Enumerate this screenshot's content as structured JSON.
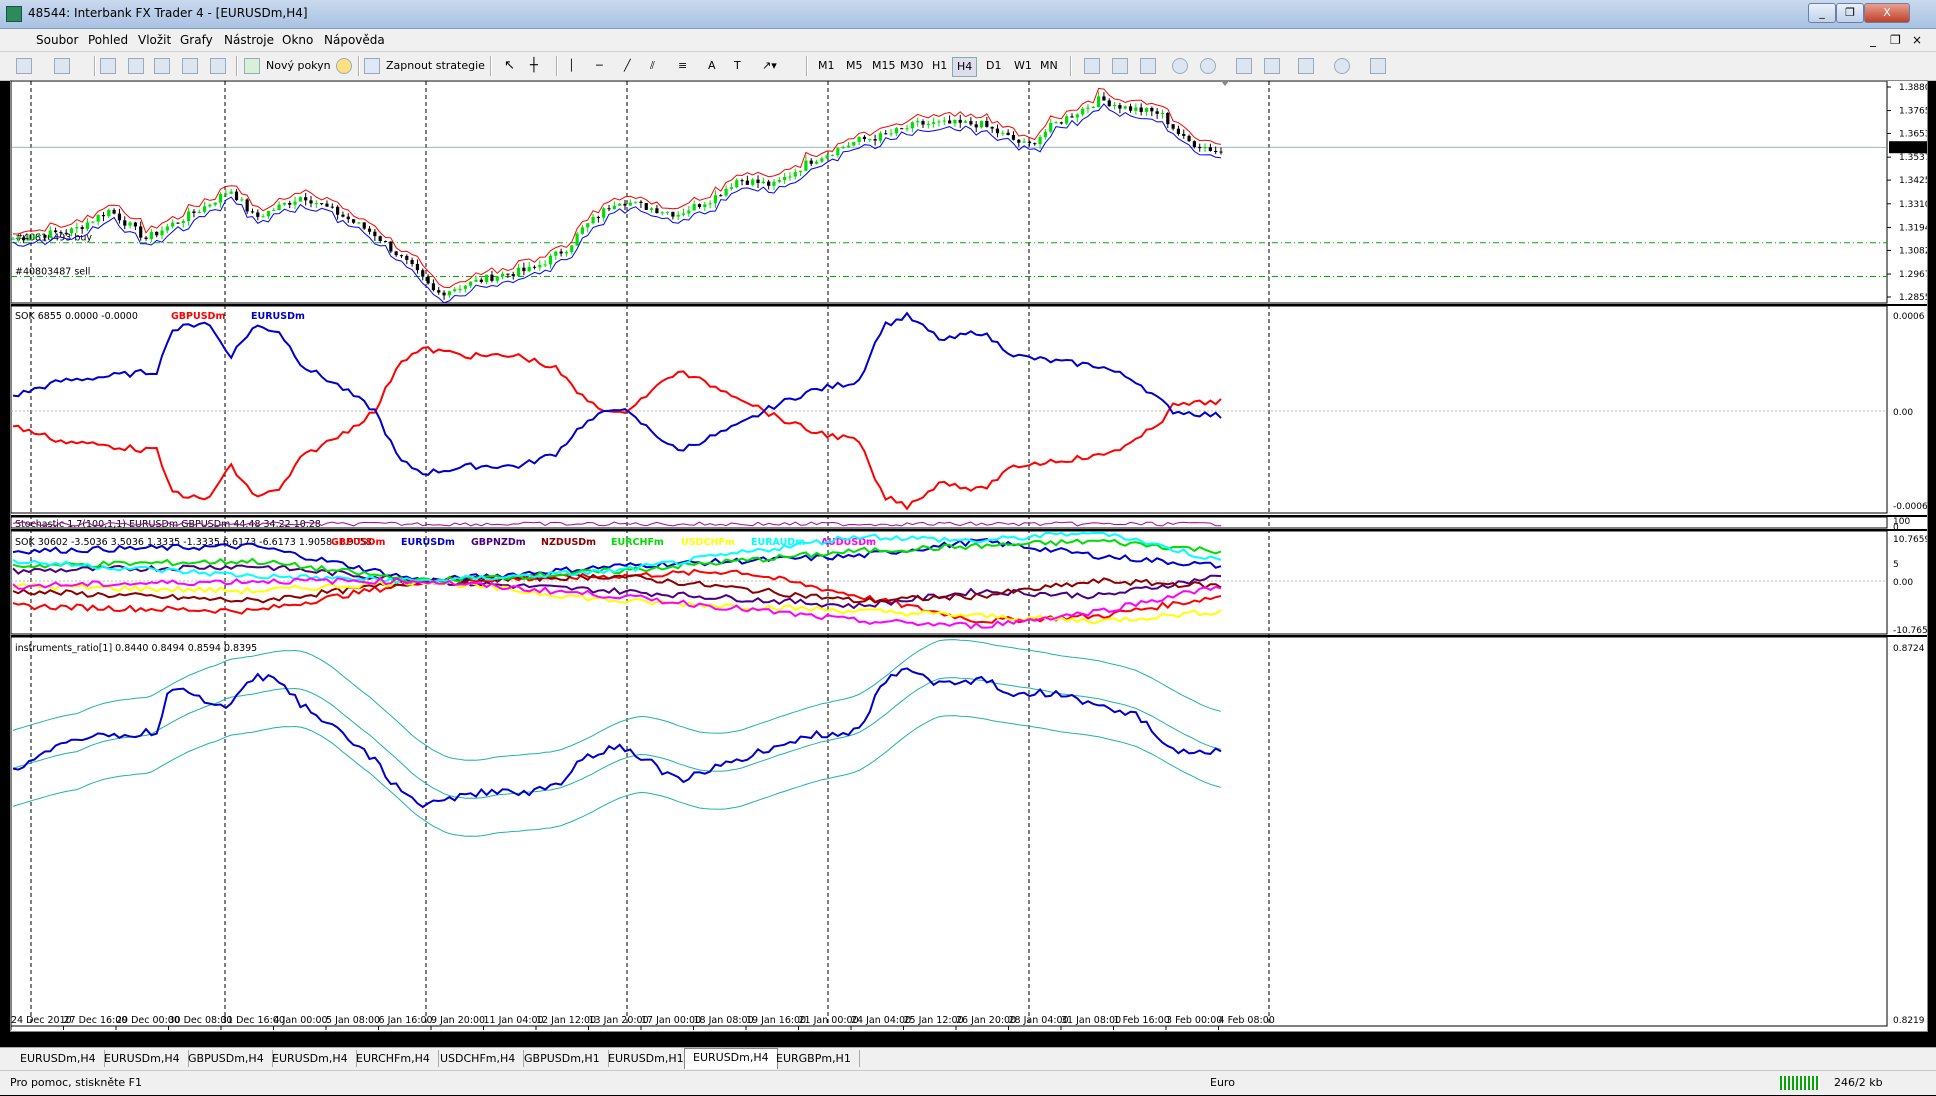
{
  "window": {
    "title": "48544: Interbank FX Trader 4 - [EURUSDm,H4]",
    "minimize_label": "_",
    "restore_label": "❐",
    "close_label": "X"
  },
  "menu": [
    "Soubor",
    "Pohled",
    "Vložit",
    "Grafy",
    "Nástroje",
    "Okno",
    "Nápověda"
  ],
  "toolbar": {
    "new_order_label": "Nový pokyn",
    "strategy_label": "Zapnout strategie",
    "timeframes": [
      "M1",
      "M5",
      "M15",
      "M30",
      "H1",
      "H4",
      "D1",
      "W1",
      "MN"
    ],
    "active_timeframe": "H4"
  },
  "main_chart": {
    "symbol": "EURUSDm,H4",
    "current_price": "1.35861",
    "y_labels": [
      "1.38800",
      "1.37650",
      "1.36530",
      "1.35375",
      "1.34255",
      "1.33100",
      "1.31945",
      "1.30825",
      "1.29670",
      "1.28550"
    ],
    "order_lines": [
      {
        "label": "#40816493 buy",
        "price": 1.312
      },
      {
        "label": "#40803487 sell",
        "price": 1.2955
      }
    ],
    "colors": {
      "bull": "#00dd00",
      "bear": "#000000",
      "upper": "#0000ff",
      "lower": "#ff0000",
      "orders": "#00aa00"
    }
  },
  "panel_sok": {
    "header": "SOK 6855 0.0000 -0.0000",
    "legend": [
      {
        "name": "GBPUSDm",
        "color": "#ff0000"
      },
      {
        "name": "EURUSDm",
        "color": "#0000cc"
      }
    ],
    "y_labels": [
      "0.0006",
      "0.00",
      "-0.0006"
    ]
  },
  "panel_stoch": {
    "header": "Stochastic 1.7(100,1,1) EURUSDm GBPUSDm 44.48 34.22 10.28",
    "y_labels": [
      "100",
      "0"
    ]
  },
  "panel_sok_multi": {
    "header": "SOK 30602 -3.5036 3.5036 1.3335 -1.3335 6.6173 -6.6173 1.9058 -1.9058",
    "legend": [
      {
        "name": "GBPUSDm",
        "color": "#ff0000"
      },
      {
        "name": "EURUSDm",
        "color": "#0000cc"
      },
      {
        "name": "GBPNZDm",
        "color": "#4b0082"
      },
      {
        "name": "NZDUSDm",
        "color": "#8b0000"
      },
      {
        "name": "EURCHFm",
        "color": "#00dd00"
      },
      {
        "name": "USDCHFm",
        "color": "#ffff00"
      },
      {
        "name": "EURAUDm",
        "color": "#00ffff"
      },
      {
        "name": "AUDUSDm",
        "color": "#ff00ff"
      }
    ],
    "y_labels": [
      "10.7659",
      "5",
      "0.00",
      "-10.7659"
    ]
  },
  "panel_ratio": {
    "header": "instruments_ratio[1] 0.8440 0.8494 0.8594 0.8395",
    "y_labels": [
      "0.8724",
      "0.8219"
    ]
  },
  "x_labels": [
    "24 Dec 2010",
    "27 Dec 16:00",
    "29 Dec 00:00",
    "30 Dec 08:00",
    "31 Dec 16:00",
    "4 Jan 00:00",
    "5 Jan 08:00",
    "6 Jan 16:00",
    "9 Jan 20:00",
    "11 Jan 04:00",
    "12 Jan 12:00",
    "13 Jan 20:00",
    "17 Jan 00:00",
    "18 Jan 08:00",
    "19 Jan 16:00",
    "21 Jan 00:00",
    "24 Jan 04:00",
    "25 Jan 12:00",
    "26 Jan 20:00",
    "28 Jan 04:00",
    "31 Jan 08:00",
    "1 Feb 16:00",
    "3 Feb 00:00",
    "4 Feb 08:00"
  ],
  "tabs": [
    "EURUSDm,H4",
    "EURUSDm,H4",
    "GBPUSDm,H4",
    "EURUSDm,H4",
    "EURCHFm,H4",
    "USDCHFm,H4",
    "GBPUSDm,H1",
    "EURUSDm,H1",
    "EURUSDm,H4",
    "EURGBPm,H1"
  ],
  "active_tab_index": 8,
  "status": {
    "help": "Pro pomoc, stiskněte F1",
    "profile": "Euro",
    "traffic": "246/2 kb"
  }
}
